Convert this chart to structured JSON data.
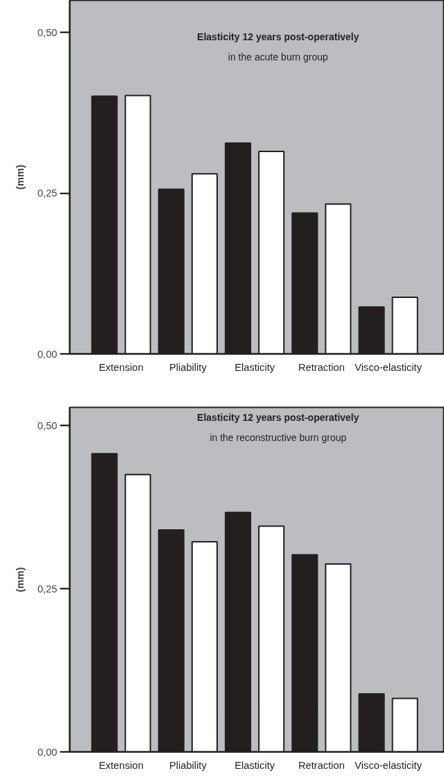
{
  "chart_data": [
    {
      "type": "bar",
      "title": "Elasticity 12 years post-operatively",
      "subtitle": "in the acute burn group",
      "ylabel": "(mm)",
      "categories": [
        "Extension",
        "Pliability",
        "Elasticity",
        "Retraction",
        "Visco-elasticity"
      ],
      "series": [
        {
          "color": "#231f20",
          "values": [
            0.401,
            0.256,
            0.328,
            0.219,
            0.073
          ]
        },
        {
          "color": "#ffffff",
          "values": [
            0.402,
            0.28,
            0.315,
            0.233,
            0.088
          ]
        }
      ],
      "ylim": [
        0,
        0.55
      ],
      "yticks": [
        {
          "value": 0,
          "label": "0,00"
        },
        {
          "value": 0.25,
          "label": "0,25"
        },
        {
          "value": 0.5,
          "label": "0,50"
        }
      ],
      "grid": false
    },
    {
      "type": "bar",
      "title": "Elasticity 12 years post-operatively",
      "subtitle": "in the reconstructive burn group",
      "ylabel": "(mm)",
      "categories": [
        "Extension",
        "Pliability",
        "Elasticity",
        "Retraction",
        "Visco-elasticity"
      ],
      "series": [
        {
          "color": "#231f20",
          "values": [
            0.457,
            0.34,
            0.367,
            0.302,
            0.089
          ]
        },
        {
          "color": "#ffffff",
          "values": [
            0.425,
            0.322,
            0.346,
            0.288,
            0.082
          ]
        }
      ],
      "ylim": [
        0,
        0.528
      ],
      "yticks": [
        {
          "value": 0,
          "label": "0,00"
        },
        {
          "value": 0.25,
          "label": "0,25"
        },
        {
          "value": 0.5,
          "label": "0,50"
        }
      ],
      "grid": false
    }
  ]
}
